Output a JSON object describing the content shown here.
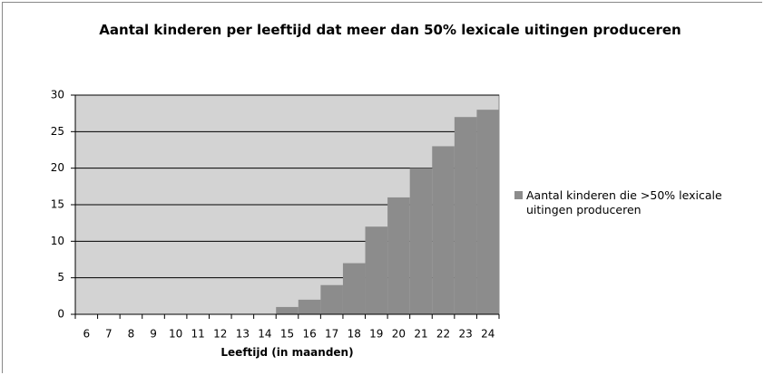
{
  "chart_data": {
    "type": "bar",
    "title": "Aantal kinderen per leeftijd dat meer dan 50% lexicale uitingen produceren",
    "x_label": "Leeftijd (in maanden)",
    "categories": [
      "6",
      "7",
      "8",
      "9",
      "10",
      "11",
      "12",
      "13",
      "14",
      "15",
      "16",
      "17",
      "18",
      "19",
      "20",
      "21",
      "22",
      "23",
      "24"
    ],
    "series": [
      {
        "name": "Aantal kinderen die >50% lexicale uitingen produceren",
        "color": "#8c8c8c",
        "values": [
          0,
          0,
          0,
          0,
          0,
          0,
          0,
          0,
          0,
          1,
          2,
          4,
          7,
          12,
          16,
          20,
          23,
          27,
          28
        ]
      }
    ],
    "ylim": [
      0,
      30
    ],
    "yticks": [
      0,
      5,
      10,
      15,
      20,
      25,
      30
    ],
    "grid": true,
    "plot_background": "#d3d3d3",
    "legend": "right"
  }
}
